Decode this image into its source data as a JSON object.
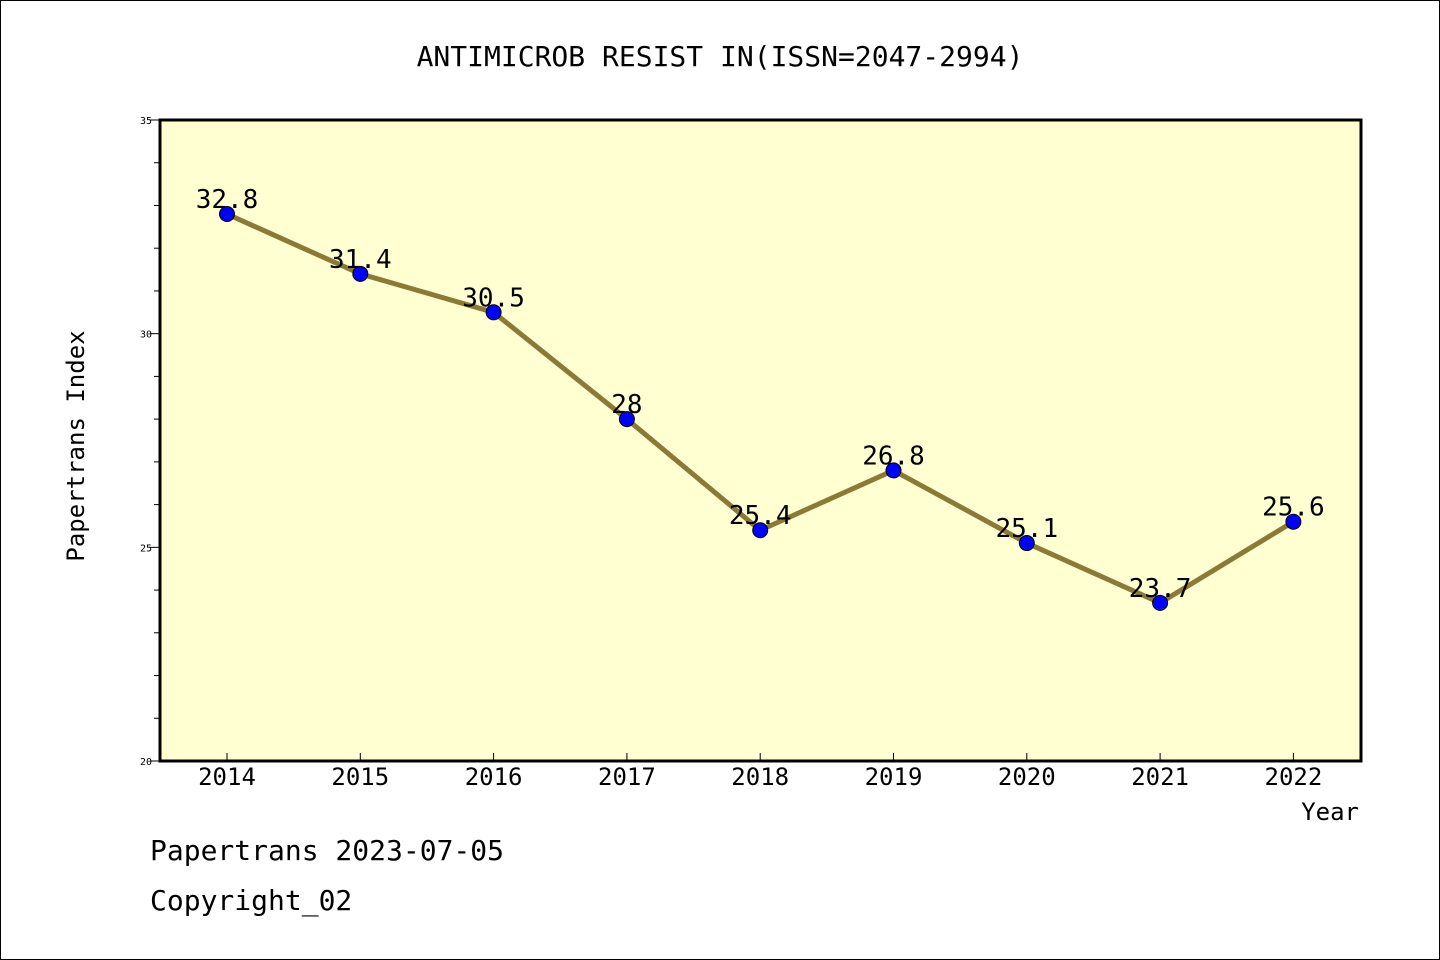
{
  "chart_data": {
    "type": "line",
    "title": "ANTIMICROB RESIST IN(ISSN=2047-2994)",
    "xlabel": "Year",
    "ylabel": "Papertrans Index",
    "categories": [
      "2014",
      "2015",
      "2016",
      "2017",
      "2018",
      "2019",
      "2020",
      "2021",
      "2022"
    ],
    "series": [
      {
        "values": [
          32.8,
          31.4,
          30.5,
          28,
          25.4,
          26.8,
          25.1,
          23.7,
          25.6
        ],
        "data_labels": [
          "32.8",
          "31.4",
          "30.5",
          "28",
          "25.4",
          "26.8",
          "25.1",
          "23.7",
          "25.6"
        ]
      }
    ],
    "ylim": [
      20,
      35
    ],
    "yticks": [
      20,
      25,
      30,
      35
    ],
    "ytick_labels": [
      "20",
      "25",
      "30",
      "35"
    ],
    "grid": false,
    "legend": "none",
    "colors": {
      "plot_background": "#ffffd2",
      "line": "#8b7a35",
      "marker": "#0000ff",
      "axis": "#000000"
    }
  },
  "footer": {
    "line1": "Papertrans 2023-07-05",
    "line2": "Copyright_02"
  }
}
